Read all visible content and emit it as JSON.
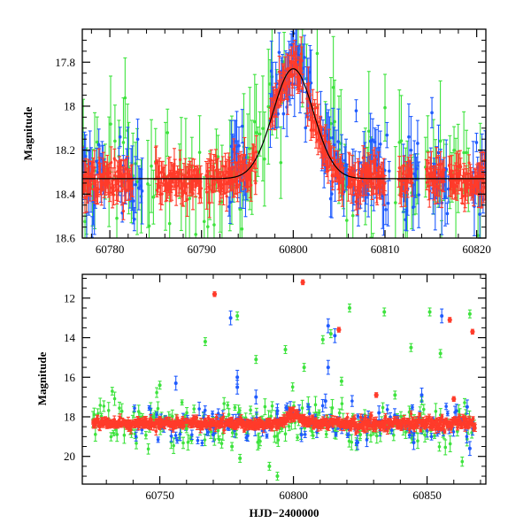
{
  "chart_data": [
    {
      "type": "scatter",
      "panel": "top",
      "title": "",
      "xlabel": "",
      "ylabel": "Magnitude",
      "xlim": [
        60777,
        60821
      ],
      "ylim": [
        18.6,
        17.65
      ],
      "y_inverted": true,
      "xticks": [
        60780,
        60790,
        60800,
        60810,
        60820
      ],
      "yticks": [
        17.8,
        18,
        18.2,
        18.4,
        18.6
      ],
      "xtick_labels": [
        "60780",
        "60790",
        "60800",
        "60810",
        "60820"
      ],
      "ytick_labels": [
        "17.8",
        "18",
        "18.2",
        "18.4",
        "18.6"
      ],
      "grid": false,
      "series_colors": {
        "red": "#ff3b2a",
        "green": "#3ee33e",
        "blue": "#1f5bff",
        "model": "#000000"
      },
      "model_curve": {
        "x": [
          60777,
          60785,
          60790,
          60793,
          60795,
          60797,
          60798.5,
          60800,
          60801.5,
          60803,
          60805,
          60807,
          60810,
          60815,
          60821
        ],
        "y": [
          18.33,
          18.32,
          18.29,
          18.23,
          18.12,
          17.96,
          17.86,
          17.83,
          17.86,
          17.96,
          18.12,
          18.23,
          18.29,
          18.32,
          18.33
        ]
      },
      "baseline": 18.33,
      "peak": {
        "x": 60800,
        "y": 17.83,
        "sigma": 2.2
      }
    },
    {
      "type": "scatter",
      "panel": "bottom",
      "title": "",
      "xlabel": "HJD−2400000",
      "ylabel": "Magnitude",
      "xlim": [
        60721,
        60872
      ],
      "ylim": [
        21.4,
        10.8
      ],
      "y_inverted": true,
      "xticks": [
        60750,
        60800,
        60850
      ],
      "yticks": [
        12,
        14,
        16,
        18,
        20
      ],
      "xtick_labels": [
        "60750",
        "60800",
        "60850"
      ],
      "ytick_labels": [
        "12",
        "14",
        "16",
        "18",
        "20"
      ],
      "grid": false,
      "outliers": {
        "red": [
          [
            60770.5,
            11.8
          ],
          [
            60803.5,
            11.2
          ],
          [
            60817,
            13.6
          ],
          [
            60858.5,
            13.1
          ],
          [
            60867,
            13.7
          ],
          [
            60831,
            16.9
          ],
          [
            60860,
            17.1
          ],
          [
            60750,
            18.1
          ]
        ],
        "green": [
          [
            60767,
            14.2
          ],
          [
            60779,
            12.9
          ],
          [
            60797,
            14.6
          ],
          [
            60811,
            14.1
          ],
          [
            60814,
            13.8
          ],
          [
            60821,
            12.5
          ],
          [
            60834,
            12.7
          ],
          [
            60851,
            12.7
          ],
          [
            60855,
            14.8
          ],
          [
            60866,
            12.8
          ],
          [
            60844,
            14.5
          ],
          [
            60786,
            15.1
          ],
          [
            60804,
            15.5
          ],
          [
            60818,
            16.2
          ],
          [
            60750,
            16.4
          ],
          [
            60760,
            18.6
          ],
          [
            60777,
            19.5
          ],
          [
            60791,
            20.5
          ],
          [
            60794,
            21.0
          ],
          [
            60838,
            16.9
          ],
          [
            60848,
            17.2
          ],
          [
            60825,
            18.9
          ],
          [
            60780,
            20.1
          ]
        ],
        "blue": [
          [
            60776.5,
            13.0
          ],
          [
            60813,
            13.4
          ],
          [
            60815.5,
            13.9
          ],
          [
            60855.5,
            12.9
          ],
          [
            60813,
            15.5
          ],
          [
            60779,
            16.0
          ],
          [
            60779,
            16.5
          ],
          [
            60756,
            16.3
          ],
          [
            60786,
            17.0
          ],
          [
            60848,
            16.9
          ],
          [
            60812,
            17.2
          ],
          [
            60794,
            17.7
          ],
          [
            60865,
            17.5
          ],
          [
            60832,
            17.8
          ],
          [
            60845,
            19.3
          ],
          [
            60866,
            19.6
          ],
          [
            60824,
            19.3
          ],
          [
            60803,
            18.9
          ],
          [
            60770,
            18.9
          ]
        ]
      }
    }
  ]
}
